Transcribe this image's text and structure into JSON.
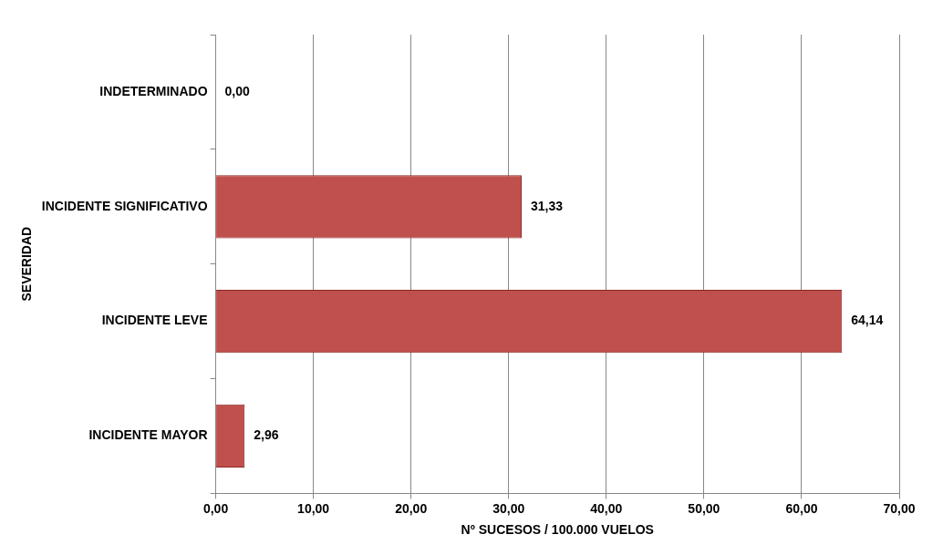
{
  "chart_data": {
    "type": "bar",
    "orientation": "horizontal",
    "ylabel": "SEVERIDAD",
    "xlabel": "Nº SUCESOS / 100.000 VUELOS",
    "categories": [
      "INDETERMINADO",
      "INCIDENTE SIGNIFICATIVO",
      "INCIDENTE LEVE",
      "INCIDENTE MAYOR"
    ],
    "values": [
      0,
      31.33,
      64.14,
      2.96
    ],
    "value_labels": [
      "0,00",
      "31,33",
      "64,14",
      "2,96"
    ],
    "color": "#c0504d",
    "xlim": [
      0,
      70
    ],
    "xticks": [
      {
        "value": 0,
        "label": "0,00"
      },
      {
        "value": 10,
        "label": "10,00"
      },
      {
        "value": 20,
        "label": "20,00"
      },
      {
        "value": 30,
        "label": "30,00"
      },
      {
        "value": 40,
        "label": "40,00"
      },
      {
        "value": 50,
        "label": "50,00"
      },
      {
        "value": 60,
        "label": "60,00"
      },
      {
        "value": 70,
        "label": "70,00"
      }
    ],
    "grid": "x",
    "legend": false
  }
}
